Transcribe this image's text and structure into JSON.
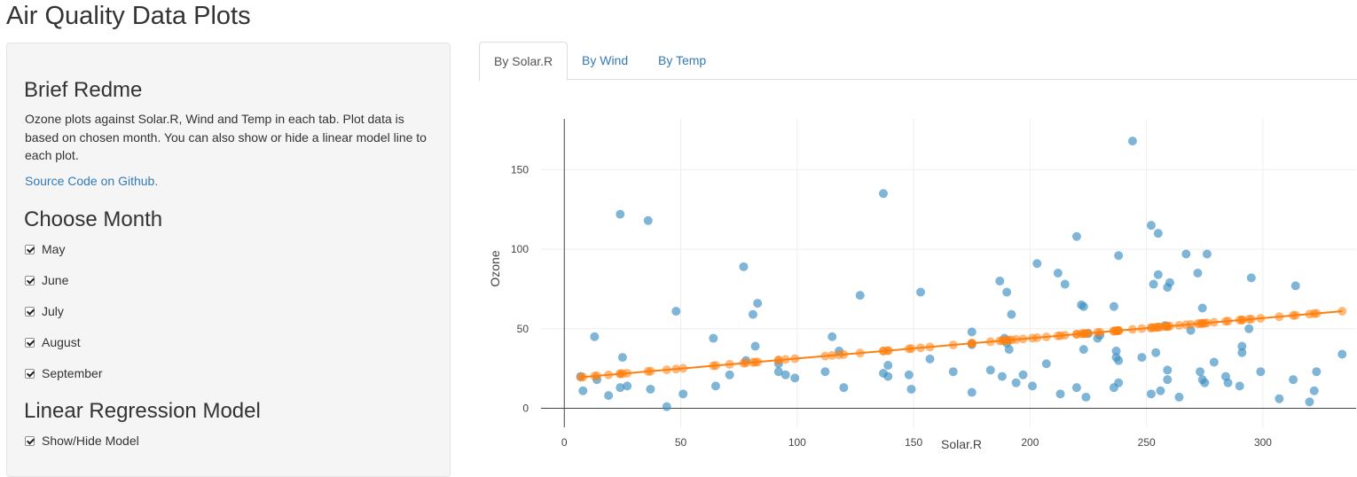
{
  "app": {
    "title": "Air Quality Data Plots"
  },
  "sidebar": {
    "readme_heading": "Brief Redme",
    "readme_text": "Ozone plots against Solar.R, Wind and Temp in each tab. Plot data is based on chosen month. You can also show or hide a linear model line to each plot.",
    "source_link": "Source Code on Github.",
    "month_heading": "Choose Month",
    "months": [
      {
        "label": "May",
        "checked": true
      },
      {
        "label": "June",
        "checked": true
      },
      {
        "label": "July",
        "checked": true
      },
      {
        "label": "August",
        "checked": true
      },
      {
        "label": "September",
        "checked": true
      }
    ],
    "model_heading": "Linear Regression Model",
    "model_toggle": {
      "label": "Show/Hide Model",
      "checked": true
    }
  },
  "tabs": [
    {
      "label": "By Solar.R",
      "active": true
    },
    {
      "label": "By Wind",
      "active": false
    },
    {
      "label": "By Temp",
      "active": false
    }
  ],
  "colors": {
    "points": "#3a8fc2",
    "model": "#ff7f0e",
    "link": "#337ab7"
  },
  "chart_data": {
    "type": "scatter",
    "xlabel": "Solar.R",
    "ylabel": "Ozone",
    "xlim": [
      -10,
      340
    ],
    "ylim": [
      -12,
      182
    ],
    "xticks": [
      0,
      50,
      100,
      150,
      200,
      250,
      300
    ],
    "yticks": [
      0,
      50,
      100,
      150
    ],
    "grid": true,
    "series": [
      {
        "points": [
          [
            190,
            41
          ],
          [
            118,
            36
          ],
          [
            149,
            12
          ],
          [
            313,
            18
          ],
          [
            299,
            23
          ],
          [
            99,
            19
          ],
          [
            19,
            8
          ],
          [
            194,
            16
          ],
          [
            256,
            11
          ],
          [
            290,
            14
          ],
          [
            274,
            18
          ],
          [
            65,
            14
          ],
          [
            334,
            34
          ],
          [
            307,
            6
          ],
          [
            78,
            30
          ],
          [
            322,
            11
          ],
          [
            44,
            1
          ],
          [
            8,
            11
          ],
          [
            320,
            4
          ],
          [
            25,
            32
          ],
          [
            92,
            23
          ],
          [
            13,
            45
          ],
          [
            252,
            115
          ],
          [
            223,
            37
          ],
          [
            279,
            29
          ],
          [
            127,
            71
          ],
          [
            291,
            39
          ],
          [
            323,
            23
          ],
          [
            148,
            21
          ],
          [
            191,
            37
          ],
          [
            284,
            20
          ],
          [
            37,
            12
          ],
          [
            120,
            13
          ],
          [
            137,
            135
          ],
          [
            269,
            49
          ],
          [
            248,
            32
          ],
          [
            236,
            64
          ],
          [
            175,
            40
          ],
          [
            314,
            77
          ],
          [
            276,
            97
          ],
          [
            267,
            97
          ],
          [
            272,
            85
          ],
          [
            175,
            10
          ],
          [
            139,
            27
          ],
          [
            264,
            7
          ],
          [
            175,
            48
          ],
          [
            291,
            35
          ],
          [
            48,
            61
          ],
          [
            260,
            79
          ],
          [
            274,
            63
          ],
          [
            285,
            16
          ],
          [
            187,
            80
          ],
          [
            220,
            108
          ],
          [
            7,
            20
          ],
          [
            258,
            52
          ],
          [
            295,
            82
          ],
          [
            294,
            50
          ],
          [
            223,
            64
          ],
          [
            81,
            59
          ],
          [
            82,
            39
          ],
          [
            213,
            9
          ],
          [
            275,
            16
          ],
          [
            253,
            78
          ],
          [
            254,
            35
          ],
          [
            83,
            66
          ],
          [
            24,
            122
          ],
          [
            77,
            89
          ],
          [
            255,
            110
          ],
          [
            229,
            44
          ],
          [
            207,
            28
          ],
          [
            222,
            65
          ],
          [
            137,
            22
          ],
          [
            192,
            59
          ],
          [
            273,
            23
          ],
          [
            157,
            31
          ],
          [
            64,
            44
          ],
          [
            71,
            21
          ],
          [
            51,
            9
          ],
          [
            115,
            45
          ],
          [
            244,
            168
          ],
          [
            190,
            73
          ],
          [
            259,
            76
          ],
          [
            36,
            118
          ],
          [
            255,
            84
          ],
          [
            212,
            85
          ],
          [
            238,
            96
          ],
          [
            215,
            78
          ],
          [
            153,
            73
          ],
          [
            203,
            91
          ],
          [
            225,
            47
          ],
          [
            237,
            32
          ],
          [
            188,
            20
          ],
          [
            167,
            23
          ],
          [
            197,
            21
          ],
          [
            183,
            24
          ],
          [
            189,
            44
          ],
          [
            95,
            21
          ],
          [
            92,
            28
          ],
          [
            252,
            9
          ],
          [
            220,
            13
          ],
          [
            230,
            46
          ],
          [
            259,
            18
          ],
          [
            236,
            13
          ],
          [
            259,
            24
          ],
          [
            238,
            16
          ],
          [
            24,
            13
          ],
          [
            112,
            23
          ],
          [
            237,
            36
          ],
          [
            224,
            7
          ],
          [
            27,
            14
          ],
          [
            238,
            30
          ],
          [
            201,
            14
          ],
          [
            14,
            18
          ],
          [
            139,
            20
          ]
        ],
        "color": "#3a8fc2"
      }
    ],
    "model_line": {
      "intercept": 18.6,
      "slope": 0.127
    }
  }
}
